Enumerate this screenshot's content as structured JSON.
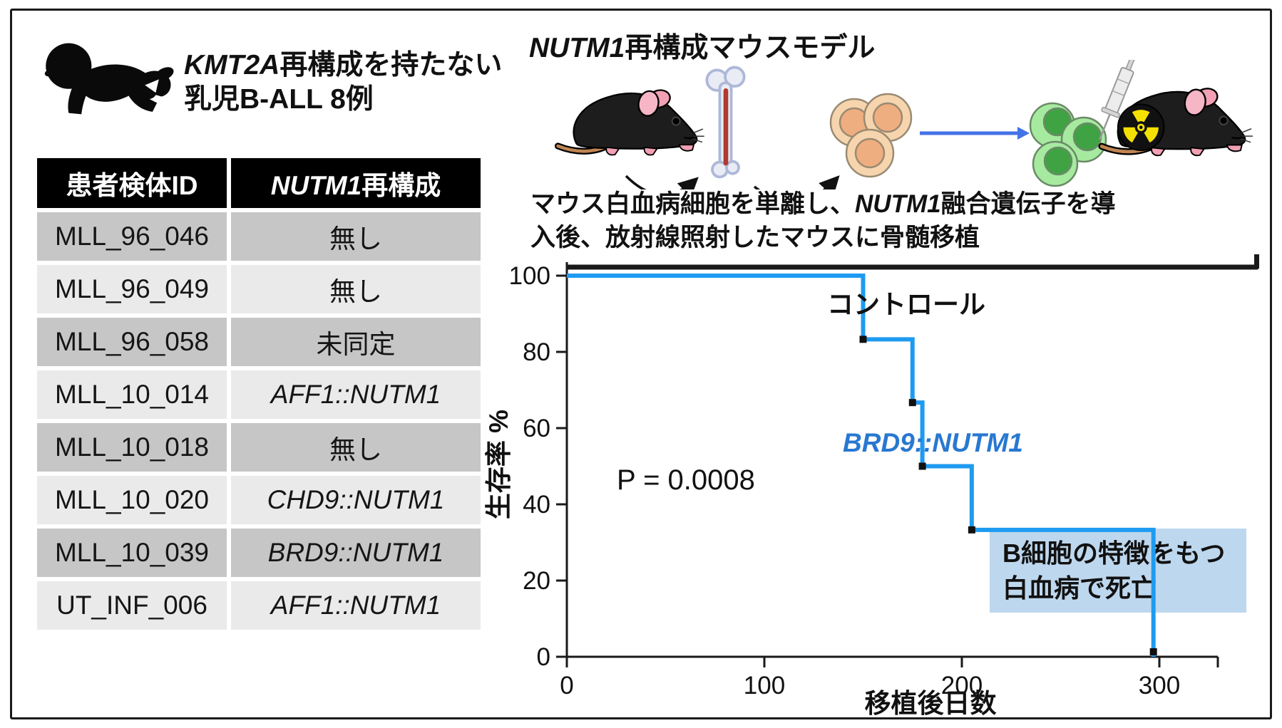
{
  "icons": {
    "baby": "crawling-infant-silhouette",
    "mouse": "black-lab-mouse",
    "bone": "femur-with-marrow",
    "tan_cells": "leukemia-cell-cluster",
    "green_cells": "transduced-cell-cluster",
    "syringe": "injection-syringe",
    "radiation": "radiation-trefoil",
    "arrows": "process-flow-arrows"
  },
  "left_panel": {
    "title": {
      "gene": "KMT2A",
      "rest": "再構成を持たない",
      "line2": "乳児B-ALL 8例"
    },
    "table": {
      "header": {
        "col1": "患者検体ID",
        "col2_gene": "NUTM1",
        "col2_rest": "再構成"
      },
      "rows": [
        {
          "id": "MLL_96_046",
          "fusion": "無し",
          "italic": false
        },
        {
          "id": "MLL_96_049",
          "fusion": "無し",
          "italic": false
        },
        {
          "id": "MLL_96_058",
          "fusion": "未同定",
          "italic": false
        },
        {
          "id": "MLL_10_014",
          "fusion": "AFF1::NUTM1",
          "italic": true
        },
        {
          "id": "MLL_10_018",
          "fusion": "無し",
          "italic": false
        },
        {
          "id": "MLL_10_020",
          "fusion": "CHD9::NUTM1",
          "italic": true
        },
        {
          "id": "MLL_10_039",
          "fusion": "BRD9::NUTM1",
          "italic": true
        },
        {
          "id": "UT_INF_006",
          "fusion": "AFF1::NUTM1",
          "italic": true
        }
      ],
      "colors": {
        "header_bg": "#000000",
        "header_text": "#ffffff",
        "row_dark": "#c6c6c6",
        "row_light": "#eaeaea"
      }
    }
  },
  "right_panel": {
    "title": {
      "gene": "NUTM1",
      "rest": "再構成マウスモデル"
    },
    "caption": {
      "line1_pre": "マウス白血病細胞を単離し、",
      "gene": "NUTM1",
      "line1_post": "融合遺伝子を導",
      "line2": "入後、放射線照射したマウスに骨髄移植"
    }
  },
  "chart_data": {
    "type": "line",
    "subtype": "kaplan-meier-step",
    "title": "",
    "xlabel": "移植後日数",
    "ylabel": "生存率  %",
    "xlim": [
      0,
      350
    ],
    "ylim": [
      0,
      100
    ],
    "x_ticks": [
      "0",
      "100",
      "200",
      "300"
    ],
    "y_ticks": [
      "100",
      "80",
      "60",
      "40",
      "20",
      "0"
    ],
    "grid": false,
    "p_value": "P = 0.0008",
    "series": [
      {
        "name": "コントロール",
        "color": "#1a1a1a",
        "points": [
          [
            0,
            100
          ],
          [
            350,
            100
          ]
        ],
        "end_censor_tick": true
      },
      {
        "name": "BRD9::NUTM1",
        "color": "#1e9bf0",
        "label_color": "#2878d0",
        "points": [
          [
            0,
            100
          ],
          [
            150,
            100
          ],
          [
            150,
            83.3
          ],
          [
            175,
            83.3
          ],
          [
            175,
            66.7
          ],
          [
            180,
            66.7
          ],
          [
            180,
            50
          ],
          [
            205,
            50
          ],
          [
            205,
            33.3
          ],
          [
            297,
            33.3
          ],
          [
            297,
            0
          ]
        ],
        "markers": [
          [
            150,
            83.3
          ],
          [
            175,
            66.7
          ],
          [
            180,
            50
          ],
          [
            205,
            33.3
          ],
          [
            297,
            0
          ]
        ]
      }
    ],
    "annotation_box": {
      "fill": "#bdd7ee",
      "line1": "B細胞の特徴をもつ",
      "line2": "白血病で死亡"
    }
  }
}
